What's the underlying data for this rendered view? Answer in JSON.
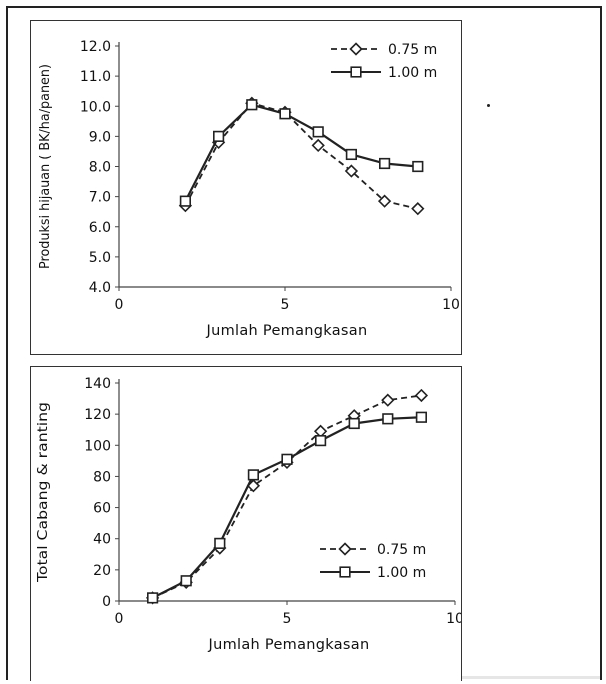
{
  "chart_data": [
    {
      "type": "line",
      "xlabel": "Jumlah Pemangkasan",
      "ylabel": "Produksi hijauan ( BK/ha/panen)",
      "xlim": [
        0,
        10
      ],
      "ylim": [
        4.0,
        12.0
      ],
      "xticks": [
        "0",
        "5",
        "10"
      ],
      "yticks": [
        "4.0",
        "5.0",
        "6.0",
        "7.0",
        "8.0",
        "9.0",
        "10.0",
        "11.0",
        "12.0"
      ],
      "legend_position": "top-right",
      "grid": false,
      "series": [
        {
          "name": "0.75 m",
          "style": "dashed",
          "marker": "diamond",
          "color": "#222222",
          "x": [
            2,
            3,
            4,
            5,
            6,
            7,
            8,
            9
          ],
          "y": [
            6.7,
            8.8,
            10.1,
            9.8,
            8.7,
            7.85,
            6.85,
            6.6
          ]
        },
        {
          "name": "1.00 m",
          "style": "solid",
          "marker": "square",
          "color": "#222222",
          "x": [
            2,
            3,
            4,
            5,
            6,
            7,
            8,
            9
          ],
          "y": [
            6.85,
            9.0,
            10.05,
            9.75,
            9.15,
            8.4,
            8.1,
            8.0
          ]
        }
      ]
    },
    {
      "type": "line",
      "xlabel": "Jumlah Pemangkasan",
      "ylabel": "Total Cabang & ranting",
      "xlim": [
        0,
        10
      ],
      "ylim": [
        0,
        140
      ],
      "xticks": [
        "0",
        "5",
        "10"
      ],
      "yticks": [
        "0",
        "20",
        "40",
        "60",
        "80",
        "100",
        "120",
        "140"
      ],
      "legend_position": "bottom-right",
      "grid": false,
      "series": [
        {
          "name": "0.75 m",
          "style": "dashed",
          "marker": "diamond",
          "color": "#222222",
          "x": [
            1,
            2,
            3,
            4,
            5,
            6,
            7,
            8,
            9
          ],
          "y": [
            2,
            12,
            34,
            74,
            89,
            109,
            119,
            129,
            132
          ]
        },
        {
          "name": "1.00 m",
          "style": "solid",
          "marker": "square",
          "color": "#222222",
          "x": [
            1,
            2,
            3,
            4,
            5,
            6,
            7,
            8,
            9
          ],
          "y": [
            2,
            13,
            37,
            81,
            91,
            103,
            114,
            117,
            118
          ]
        }
      ]
    }
  ]
}
